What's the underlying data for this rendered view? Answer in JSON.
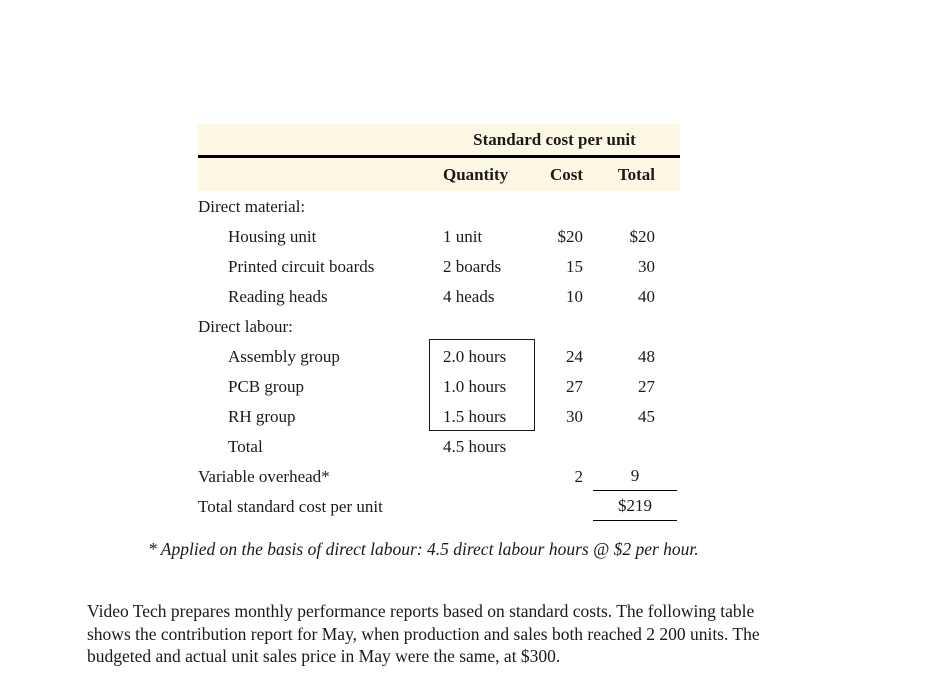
{
  "colors": {
    "header_highlight": "#fdf8e4",
    "text": "#1a1a1a"
  },
  "table": {
    "title": "Standard cost per unit",
    "columns": {
      "quantity": "Quantity",
      "cost": "Cost",
      "total": "Total"
    },
    "rows": [
      {
        "label": "Direct material:",
        "quantity": "",
        "cost": "",
        "total": ""
      },
      {
        "label": "Housing unit",
        "quantity": "1 unit",
        "cost": "$20",
        "total": "$20"
      },
      {
        "label": "Printed circuit boards",
        "quantity": "2 boards",
        "cost": "15",
        "total": "30"
      },
      {
        "label": "Reading heads",
        "quantity": "4 heads",
        "cost": "10",
        "total": "40"
      },
      {
        "label": "Direct labour:",
        "quantity": "",
        "cost": "",
        "total": ""
      },
      {
        "label": "Assembly group",
        "quantity": "2.0 hours",
        "cost": "24",
        "total": "48"
      },
      {
        "label": "PCB group",
        "quantity": "1.0 hours",
        "cost": "27",
        "total": "27"
      },
      {
        "label": "RH group",
        "quantity": "1.5 hours",
        "cost": "30",
        "total": "45"
      },
      {
        "label": "Total",
        "quantity": "4.5 hours",
        "cost": "",
        "total": ""
      },
      {
        "label": "Variable overhead*",
        "quantity": "",
        "cost": "2",
        "total": "9"
      },
      {
        "label": "Total standard cost per unit",
        "quantity": "",
        "cost": "",
        "total": "$219"
      }
    ]
  },
  "footnote": "* Applied on the basis of direct labour: 4.5 direct labour hours @ $2 per hour.",
  "paragraph": {
    "lines": [
      "Video Tech prepares monthly performance reports based on standard costs. The following table",
      "shows the contribution report for May, when production and sales both reached 2 200 units. The",
      "budgeted and actual unit sales price in May were the same, at $300."
    ]
  }
}
